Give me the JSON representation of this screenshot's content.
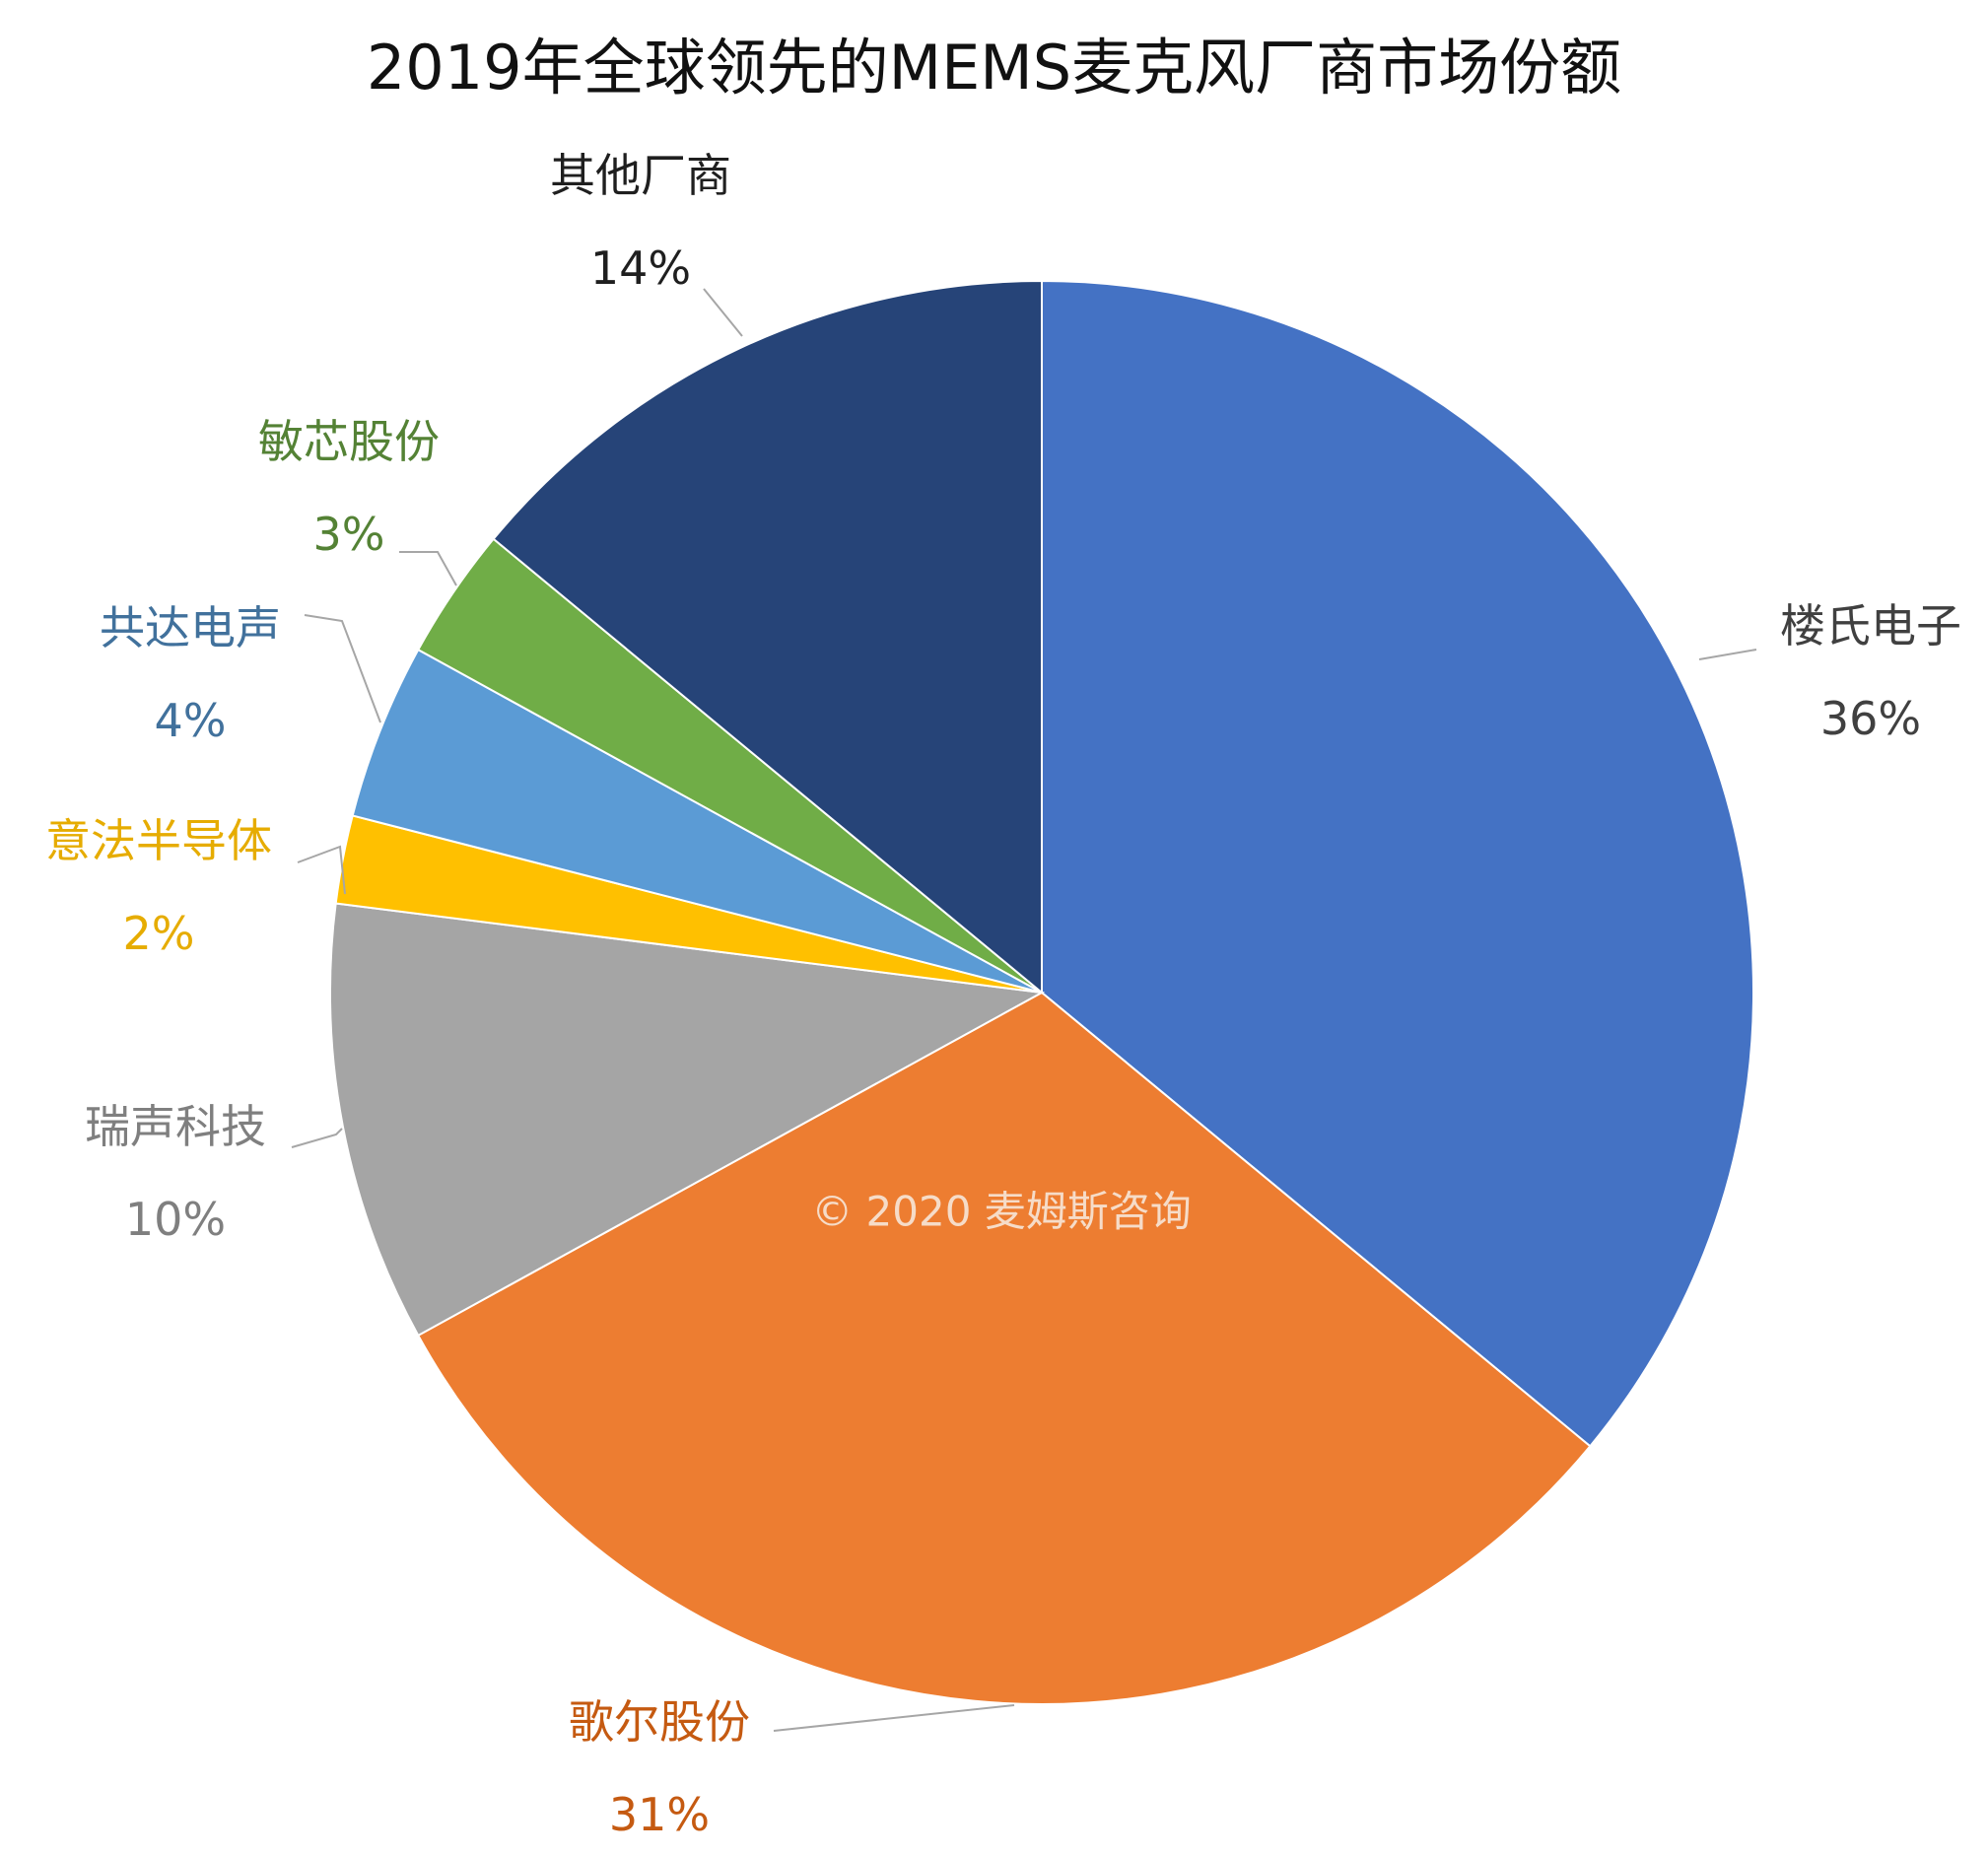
{
  "chart_data": {
    "type": "pie",
    "title": "2019年全球领先的MEMS麦克风厂商市场份额",
    "start": "12 o'clock, clockwise",
    "slices": [
      {
        "label": "楼氏电子",
        "value": 36,
        "display": "36%",
        "color": "#4472C4",
        "label_color": "#404040"
      },
      {
        "label": "歌尔股份",
        "value": 31,
        "display": "31%",
        "color": "#ED7D31",
        "label_color": "#C55A11"
      },
      {
        "label": "瑞声科技",
        "value": 10,
        "display": "10%",
        "color": "#A5A5A5",
        "label_color": "#7F7F7F"
      },
      {
        "label": "意法半导体",
        "value": 2,
        "display": "2%",
        "color": "#FFC000",
        "label_color": "#E6AC00"
      },
      {
        "label": "共达电声",
        "value": 4,
        "display": "4%",
        "color": "#5B9BD5",
        "label_color": "#41719C"
      },
      {
        "label": "敏芯股份",
        "value": 3,
        "display": "3%",
        "color": "#70AD47",
        "label_color": "#548235"
      },
      {
        "label": "其他厂商",
        "value": 14,
        "display": "14%",
        "color": "#264478",
        "label_color": "#1F1F1F"
      }
    ],
    "watermark": "© 2020 麦姆斯咨询"
  }
}
